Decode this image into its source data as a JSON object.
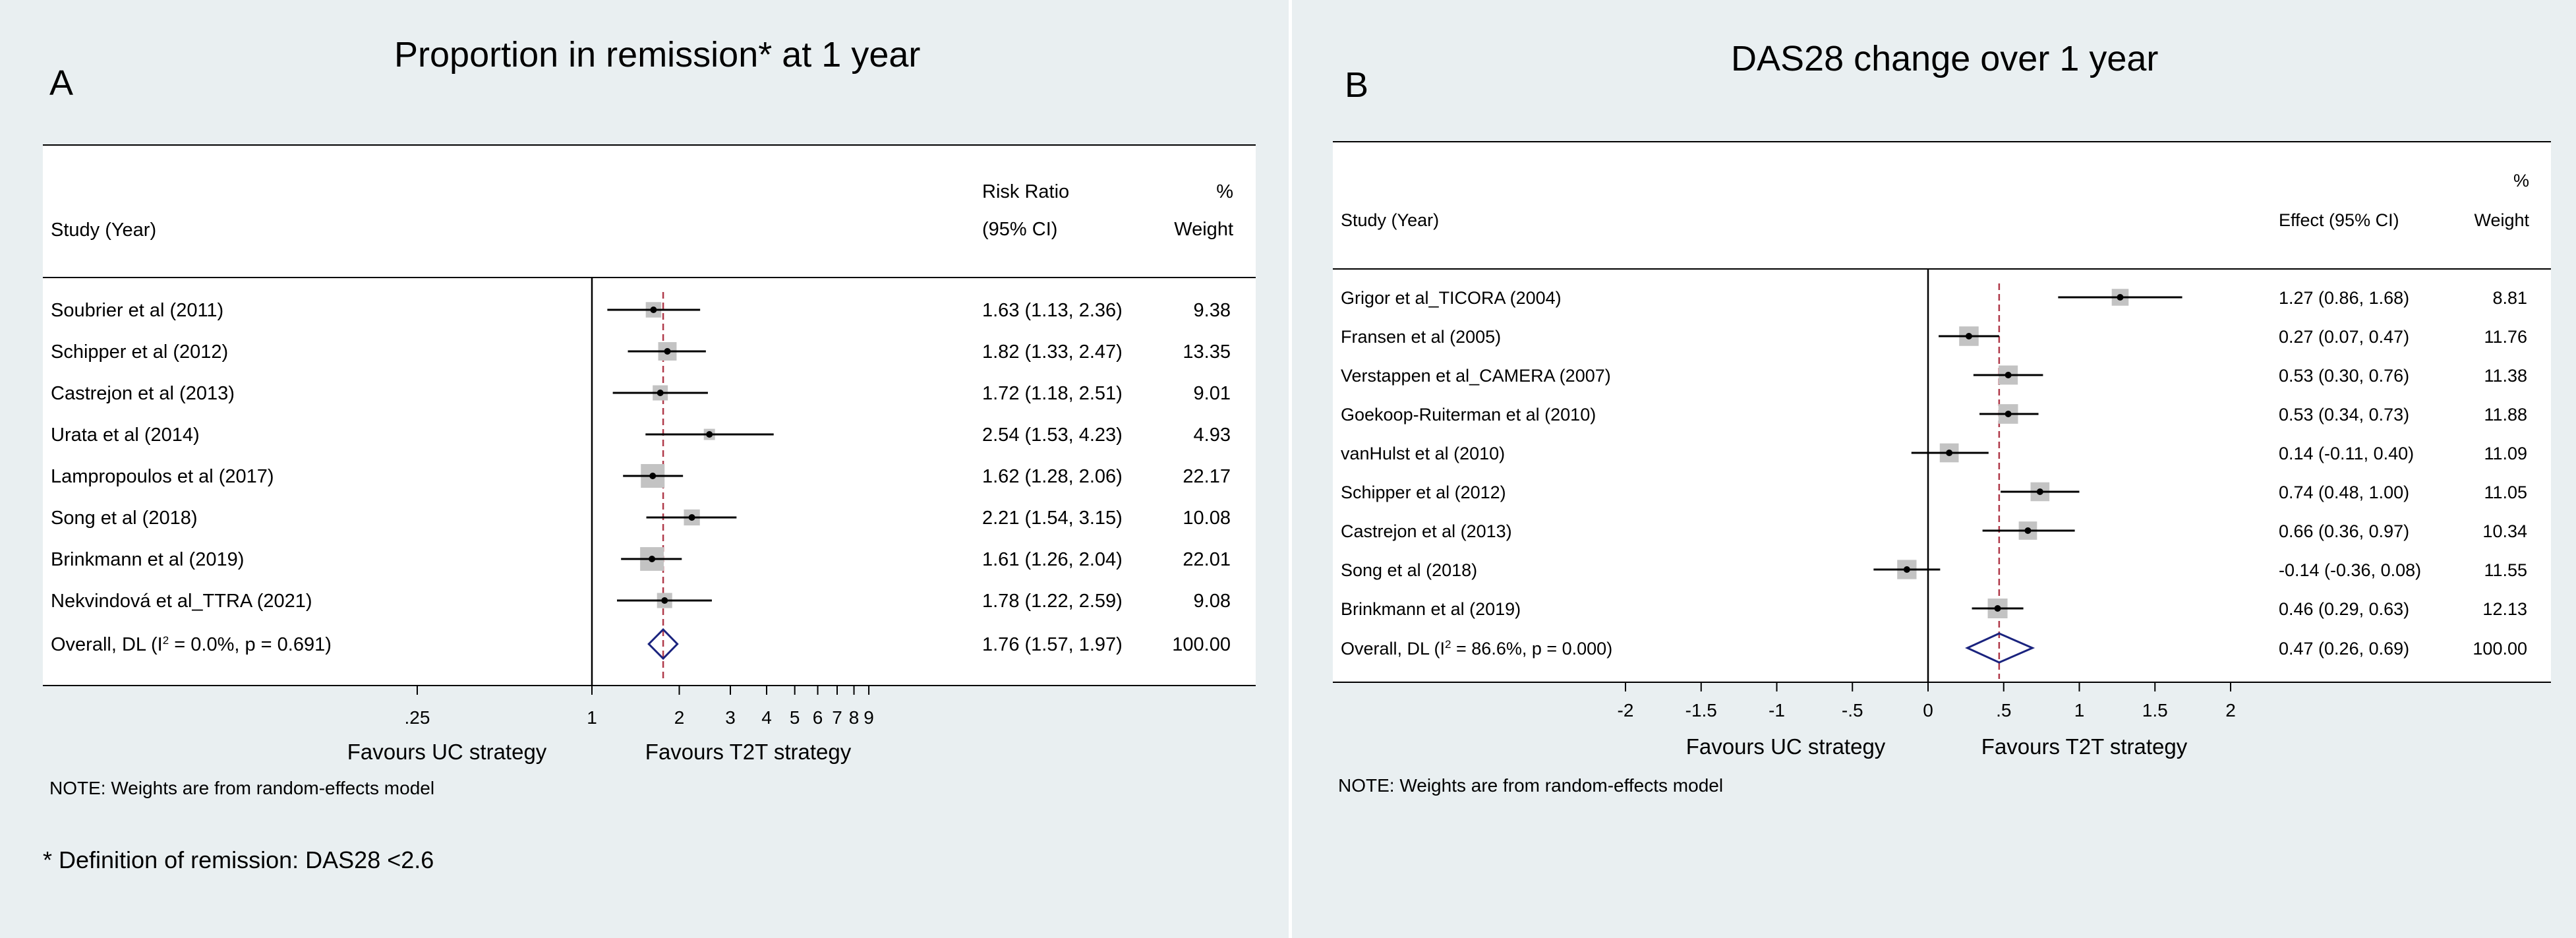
{
  "chart_data": [
    {
      "type": "forest",
      "panel_label": "A",
      "title": "Proportion in remission* at 1 year",
      "header": {
        "study_label": "Study (Year)",
        "effect_label_line1": "Risk Ratio",
        "effect_label_line2": "(95% CI)",
        "weight_label_line1": "%",
        "weight_label_line2": "Weight"
      },
      "x_scale": "log",
      "null_value": 1,
      "x_ticks": [
        {
          "value": 0.25,
          "label": ".25"
        },
        {
          "value": 1,
          "label": "1"
        },
        {
          "value": 2,
          "label": "2"
        },
        {
          "value": 3,
          "label": "3"
        },
        {
          "value": 4,
          "label": "4"
        },
        {
          "value": 5,
          "label": "5"
        },
        {
          "value": 6,
          "label": "6"
        },
        {
          "value": 7,
          "label": "7"
        },
        {
          "value": 8,
          "label": "8"
        },
        {
          "value": 9,
          "label": "9"
        }
      ],
      "favours_left": "Favours UC strategy",
      "favours_right": "Favours T2T strategy",
      "studies": [
        {
          "name": "Soubrier et al (2011)",
          "estimate": 1.63,
          "lower": 1.13,
          "upper": 2.36,
          "ci_text": "1.63 (1.13, 2.36)",
          "weight": 9.38,
          "weight_text": "9.38"
        },
        {
          "name": "Schipper et al (2012)",
          "estimate": 1.82,
          "lower": 1.33,
          "upper": 2.47,
          "ci_text": "1.82 (1.33, 2.47)",
          "weight": 13.35,
          "weight_text": "13.35"
        },
        {
          "name": "Castrejon et al (2013)",
          "estimate": 1.72,
          "lower": 1.18,
          "upper": 2.51,
          "ci_text": "1.72 (1.18, 2.51)",
          "weight": 9.01,
          "weight_text": "9.01"
        },
        {
          "name": "Urata et al (2014)",
          "estimate": 2.54,
          "lower": 1.53,
          "upper": 4.23,
          "ci_text": "2.54 (1.53, 4.23)",
          "weight": 4.93,
          "weight_text": "4.93"
        },
        {
          "name": "Lampropoulos et al (2017)",
          "estimate": 1.62,
          "lower": 1.28,
          "upper": 2.06,
          "ci_text": "1.62 (1.28, 2.06)",
          "weight": 22.17,
          "weight_text": "22.17"
        },
        {
          "name": "Song et al (2018)",
          "estimate": 2.21,
          "lower": 1.54,
          "upper": 3.15,
          "ci_text": "2.21 (1.54, 3.15)",
          "weight": 10.08,
          "weight_text": "10.08"
        },
        {
          "name": "Brinkmann et al (2019)",
          "estimate": 1.61,
          "lower": 1.26,
          "upper": 2.04,
          "ci_text": "1.61 (1.26, 2.04)",
          "weight": 22.01,
          "weight_text": "22.01"
        },
        {
          "name": "Nekvindová et al_TTRA  (2021)",
          "estimate": 1.78,
          "lower": 1.22,
          "upper": 2.59,
          "ci_text": "1.78 (1.22, 2.59)",
          "weight": 9.08,
          "weight_text": "9.08"
        }
      ],
      "overall": {
        "label_before": "Overall, DL (I",
        "label_sup": "2",
        "label_after": " = 0.0%, p = 0.691)",
        "estimate": 1.76,
        "lower": 1.57,
        "upper": 1.97,
        "ci_text": "1.76 (1.57, 1.97)",
        "weight_text": "100.00"
      },
      "note": "NOTE: Weights are from random-effects model",
      "colors": {
        "square": "#c3c3c3",
        "diamond": "#1a237e",
        "dashed_line": "#b03a4a"
      }
    },
    {
      "type": "forest",
      "panel_label": "B",
      "title": "DAS28 change over 1 year",
      "header": {
        "study_label": "Study (Year)",
        "effect_label_line1": "",
        "effect_label_line2": "Effect (95% CI)",
        "weight_label_line1": "%",
        "weight_label_line2": "Weight"
      },
      "x_scale": "linear",
      "null_value": 0,
      "x_ticks": [
        {
          "value": -2,
          "label": "-2"
        },
        {
          "value": -1.5,
          "label": "-1.5"
        },
        {
          "value": -1,
          "label": "-1"
        },
        {
          "value": -0.5,
          "label": "-.5"
        },
        {
          "value": 0,
          "label": "0"
        },
        {
          "value": 0.5,
          "label": ".5"
        },
        {
          "value": 1,
          "label": "1"
        },
        {
          "value": 1.5,
          "label": "1.5"
        },
        {
          "value": 2,
          "label": "2"
        }
      ],
      "favours_left": "Favours UC strategy",
      "favours_right": "Favours T2T strategy",
      "studies": [
        {
          "name": "Grigor et al_TICORA (2004)",
          "estimate": 1.27,
          "lower": 0.86,
          "upper": 1.68,
          "ci_text": "1.27 (0.86, 1.68)",
          "weight": 8.81,
          "weight_text": "8.81"
        },
        {
          "name": "Fransen et al (2005)",
          "estimate": 0.27,
          "lower": 0.07,
          "upper": 0.47,
          "ci_text": "0.27 (0.07, 0.47)",
          "weight": 11.76,
          "weight_text": "11.76"
        },
        {
          "name": "Verstappen et al_CAMERA (2007)",
          "estimate": 0.53,
          "lower": 0.3,
          "upper": 0.76,
          "ci_text": "0.53 (0.30, 0.76)",
          "weight": 11.38,
          "weight_text": "11.38"
        },
        {
          "name": "Goekoop-Ruiterman et al (2010)",
          "estimate": 0.53,
          "lower": 0.34,
          "upper": 0.73,
          "ci_text": "0.53 (0.34, 0.73)",
          "weight": 11.88,
          "weight_text": "11.88"
        },
        {
          "name": "vanHulst et al (2010)",
          "estimate": 0.14,
          "lower": -0.11,
          "upper": 0.4,
          "ci_text": "0.14 (-0.11, 0.40)",
          "weight": 11.09,
          "weight_text": "11.09"
        },
        {
          "name": "Schipper et al (2012)",
          "estimate": 0.74,
          "lower": 0.48,
          "upper": 1.0,
          "ci_text": "0.74 (0.48, 1.00)",
          "weight": 11.05,
          "weight_text": "11.05"
        },
        {
          "name": "Castrejon et al (2013)",
          "estimate": 0.66,
          "lower": 0.36,
          "upper": 0.97,
          "ci_text": "0.66 (0.36, 0.97)",
          "weight": 10.34,
          "weight_text": "10.34"
        },
        {
          "name": "Song et al (2018)",
          "estimate": -0.14,
          "lower": -0.36,
          "upper": 0.08,
          "ci_text": "-0.14 (-0.36, 0.08)",
          "weight": 11.55,
          "weight_text": "11.55"
        },
        {
          "name": "Brinkmann et al (2019)",
          "estimate": 0.46,
          "lower": 0.29,
          "upper": 0.63,
          "ci_text": "0.46 (0.29, 0.63)",
          "weight": 12.13,
          "weight_text": "12.13"
        }
      ],
      "overall": {
        "label_before": "Overall, DL (I",
        "label_sup": "2",
        "label_after": " = 86.6%, p = 0.000)",
        "estimate": 0.47,
        "lower": 0.26,
        "upper": 0.69,
        "ci_text": "0.47 (0.26, 0.69)",
        "weight_text": "100.00"
      },
      "note": "NOTE: Weights are from random-effects model",
      "colors": {
        "square": "#c3c3c3",
        "diamond": "#1a237e",
        "dashed_line": "#b03a4a"
      }
    }
  ],
  "footnote": "* Definition of remission: DAS28 <2.6"
}
